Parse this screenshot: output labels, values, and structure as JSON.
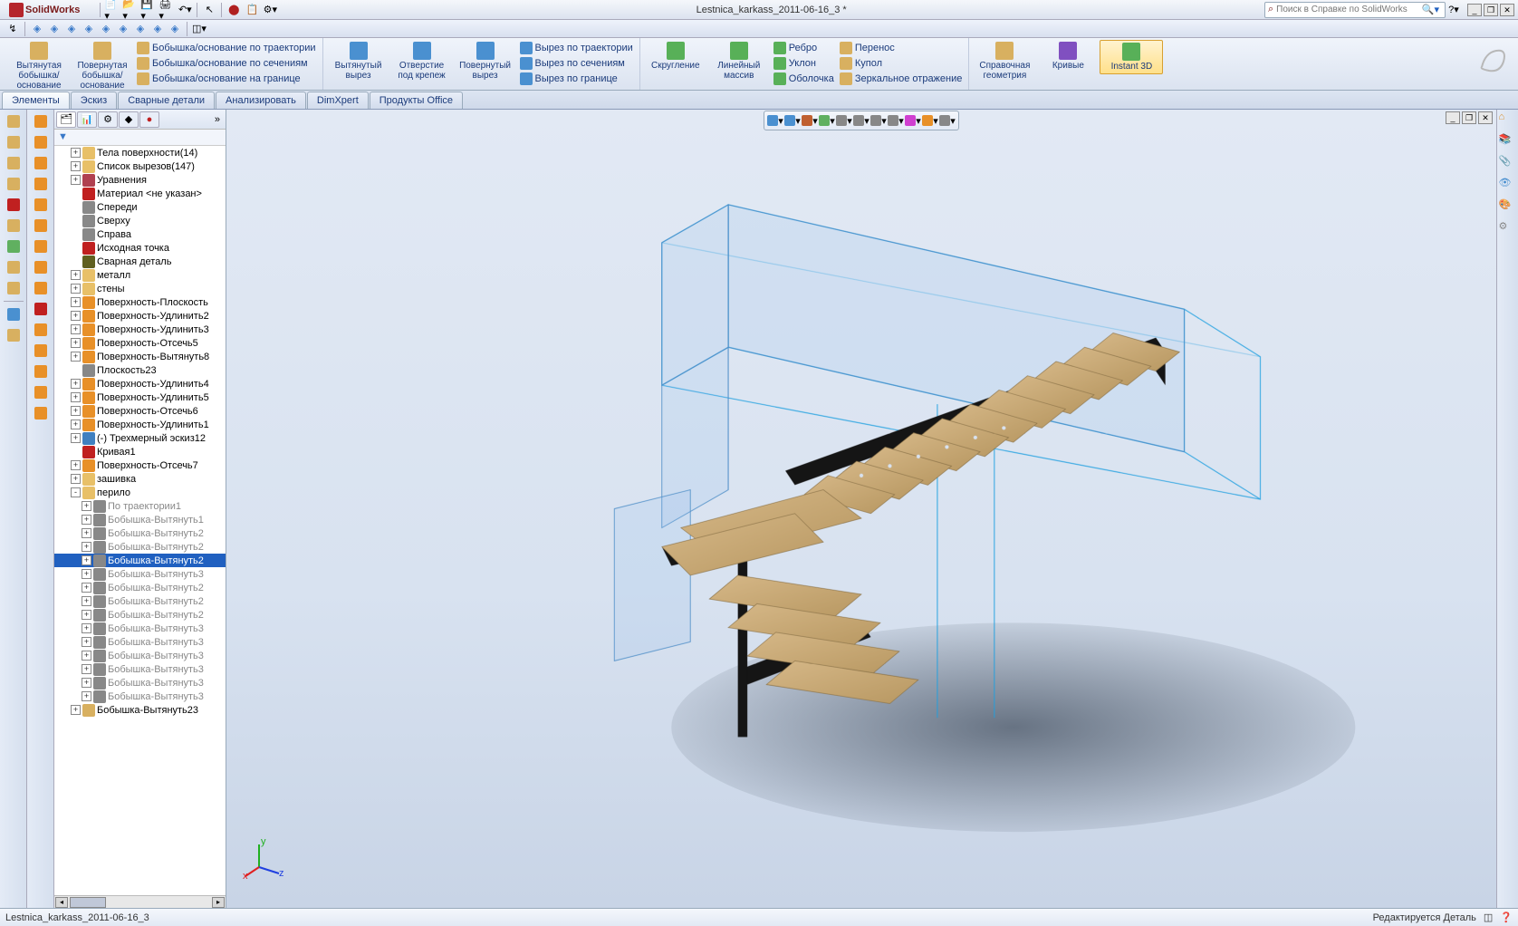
{
  "app": {
    "name": "SolidWorks",
    "document": "Lestnica_karkass_2011-06-16_3 *"
  },
  "search": {
    "placeholder": "Поиск в Справке по SolidWorks"
  },
  "ribbon": {
    "g1": [
      {
        "label": "Вытянутая бобышка/основание",
        "color": "#d8b060"
      },
      {
        "label": "Повернутая бобышка/основание",
        "color": "#d8b060"
      }
    ],
    "g1sm": [
      {
        "label": "Бобышка/основание по траектории",
        "color": "#d8b060"
      },
      {
        "label": "Бобышка/основание по сечениям",
        "color": "#d8b060"
      },
      {
        "label": "Бобышка/основание на границе",
        "color": "#d8b060"
      }
    ],
    "g2": [
      {
        "label": "Вытянутый вырез",
        "color": "#4a90d0"
      },
      {
        "label": "Отверстие под крепеж",
        "color": "#4a90d0"
      },
      {
        "label": "Повернутый вырез",
        "color": "#4a90d0"
      }
    ],
    "g2sm": [
      {
        "label": "Вырез по траектории",
        "color": "#4a90d0"
      },
      {
        "label": "Вырез по сечениям",
        "color": "#4a90d0"
      },
      {
        "label": "Вырез по границе",
        "color": "#4a90d0"
      }
    ],
    "g3": [
      {
        "label": "Скругление",
        "color": "#58b058"
      },
      {
        "label": "Линейный массив",
        "color": "#58b058"
      }
    ],
    "g3sm": [
      {
        "label": "Ребро",
        "color": "#58b058"
      },
      {
        "label": "Уклон",
        "color": "#58b058"
      },
      {
        "label": "Оболочка",
        "color": "#58b058"
      }
    ],
    "g3sm2": [
      {
        "label": "Перенос",
        "color": "#d8b060"
      },
      {
        "label": "Купол",
        "color": "#d8b060"
      },
      {
        "label": "Зеркальное отражение",
        "color": "#d8b060"
      }
    ],
    "g4": [
      {
        "label": "Справочная геометрия",
        "color": "#d8b060"
      },
      {
        "label": "Кривые",
        "color": "#8050c0"
      },
      {
        "label": "Instant 3D",
        "color": "#58b058",
        "active": true
      }
    ]
  },
  "tabs": [
    "Элементы",
    "Эскиз",
    "Сварные детали",
    "Анализировать",
    "DimXpert",
    "Продукты Office"
  ],
  "tree": [
    {
      "lvl": 1,
      "exp": "+",
      "ic": "#e8c068",
      "label": "Тела поверхности(14)"
    },
    {
      "lvl": 1,
      "exp": "+",
      "ic": "#e8c068",
      "label": "Список вырезов(147)"
    },
    {
      "lvl": 1,
      "exp": "+",
      "ic": "#b04050",
      "label": "Уравнения"
    },
    {
      "lvl": 1,
      "exp": " ",
      "ic": "#c02020",
      "label": "Материал <не указан>"
    },
    {
      "lvl": 1,
      "exp": " ",
      "ic": "#888888",
      "label": "Спереди"
    },
    {
      "lvl": 1,
      "exp": " ",
      "ic": "#888888",
      "label": "Сверху"
    },
    {
      "lvl": 1,
      "exp": " ",
      "ic": "#888888",
      "label": "Справа"
    },
    {
      "lvl": 1,
      "exp": " ",
      "ic": "#c02020",
      "label": "Исходная точка"
    },
    {
      "lvl": 1,
      "exp": " ",
      "ic": "#606020",
      "label": "Сварная деталь"
    },
    {
      "lvl": 1,
      "exp": "+",
      "ic": "#e8c068",
      "label": "металл"
    },
    {
      "lvl": 1,
      "exp": "+",
      "ic": "#e8c068",
      "label": "стены"
    },
    {
      "lvl": 1,
      "exp": "+",
      "ic": "#e89028",
      "label": "Поверхность-Плоскость"
    },
    {
      "lvl": 1,
      "exp": "+",
      "ic": "#e89028",
      "label": "Поверхность-Удлинить2"
    },
    {
      "lvl": 1,
      "exp": "+",
      "ic": "#e89028",
      "label": "Поверхность-Удлинить3"
    },
    {
      "lvl": 1,
      "exp": "+",
      "ic": "#e89028",
      "label": "Поверхность-Отсечь5"
    },
    {
      "lvl": 1,
      "exp": "+",
      "ic": "#e89028",
      "label": "Поверхность-Вытянуть8"
    },
    {
      "lvl": 1,
      "exp": " ",
      "ic": "#888888",
      "label": "Плоскость23"
    },
    {
      "lvl": 1,
      "exp": "+",
      "ic": "#e89028",
      "label": "Поверхность-Удлинить4"
    },
    {
      "lvl": 1,
      "exp": "+",
      "ic": "#e89028",
      "label": "Поверхность-Удлинить5"
    },
    {
      "lvl": 1,
      "exp": "+",
      "ic": "#e89028",
      "label": "Поверхность-Отсечь6"
    },
    {
      "lvl": 1,
      "exp": "+",
      "ic": "#e89028",
      "label": "Поверхность-Удлинить1"
    },
    {
      "lvl": 1,
      "exp": "+",
      "ic": "#4080c0",
      "label": "(-) Трехмерный эскиз12"
    },
    {
      "lvl": 1,
      "exp": " ",
      "ic": "#c02020",
      "label": "Кривая1"
    },
    {
      "lvl": 1,
      "exp": "+",
      "ic": "#e89028",
      "label": "Поверхность-Отсечь7"
    },
    {
      "lvl": 1,
      "exp": "+",
      "ic": "#e8c068",
      "label": "зашивка"
    },
    {
      "lvl": 1,
      "exp": "-",
      "ic": "#e8c068",
      "label": "перило"
    },
    {
      "lvl": 2,
      "exp": "+",
      "ic": "#888888",
      "label": "По траектории1",
      "dim": true
    },
    {
      "lvl": 2,
      "exp": "+",
      "ic": "#888888",
      "label": "Бобышка-Вытянуть1",
      "dim": true
    },
    {
      "lvl": 2,
      "exp": "+",
      "ic": "#888888",
      "label": "Бобышка-Вытянуть2",
      "dim": true
    },
    {
      "lvl": 2,
      "exp": "+",
      "ic": "#888888",
      "label": "Бобышка-Вытянуть2",
      "dim": true
    },
    {
      "lvl": 2,
      "exp": "+",
      "ic": "#888888",
      "label": "Бобышка-Вытянуть2",
      "sel": true
    },
    {
      "lvl": 2,
      "exp": "+",
      "ic": "#888888",
      "label": "Бобышка-Вытянуть3",
      "dim": true
    },
    {
      "lvl": 2,
      "exp": "+",
      "ic": "#888888",
      "label": "Бобышка-Вытянуть2",
      "dim": true
    },
    {
      "lvl": 2,
      "exp": "+",
      "ic": "#888888",
      "label": "Бобышка-Вытянуть2",
      "dim": true
    },
    {
      "lvl": 2,
      "exp": "+",
      "ic": "#888888",
      "label": "Бобышка-Вытянуть2",
      "dim": true
    },
    {
      "lvl": 2,
      "exp": "+",
      "ic": "#888888",
      "label": "Бобышка-Вытянуть3",
      "dim": true
    },
    {
      "lvl": 2,
      "exp": "+",
      "ic": "#888888",
      "label": "Бобышка-Вытянуть3",
      "dim": true
    },
    {
      "lvl": 2,
      "exp": "+",
      "ic": "#888888",
      "label": "Бобышка-Вытянуть3",
      "dim": true
    },
    {
      "lvl": 2,
      "exp": "+",
      "ic": "#888888",
      "label": "Бобышка-Вытянуть3",
      "dim": true
    },
    {
      "lvl": 2,
      "exp": "+",
      "ic": "#888888",
      "label": "Бобышка-Вытянуть3",
      "dim": true
    },
    {
      "lvl": 2,
      "exp": "+",
      "ic": "#888888",
      "label": "Бобышка-Вытянуть3",
      "dim": true
    },
    {
      "lvl": 1,
      "exp": "+",
      "ic": "#d8b060",
      "label": "Бобышка-Вытянуть23"
    }
  ],
  "leftToolbar1_colors": [
    "#d8b060",
    "#d8b060",
    "#d8b060",
    "#d8b060",
    "#c02020",
    "#d8b060",
    "#60b060",
    "#d8b060",
    "#d8b060",
    "#4a90d0",
    "#d8b060"
  ],
  "leftToolbar2_colors": [
    "#e89028",
    "#e89028",
    "#e89028",
    "#e89028",
    "#e89028",
    "#e89028",
    "#e89028",
    "#e89028",
    "#e89028",
    "#c02020",
    "#e89028",
    "#e89028",
    "#e89028",
    "#e89028",
    "#e89028"
  ],
  "viewToolbar_colors": [
    "#4a90d0",
    "#4a90d0",
    "#c06030",
    "#60b060",
    "#888888",
    "#888888",
    "#888888",
    "#888888",
    "#d040d0",
    "#e89028",
    "#888888"
  ],
  "status": {
    "left": "Lestnica_karkass_2011-06-16_3",
    "right": "Редактируется Деталь"
  },
  "triad": {
    "x": "x",
    "y": "y",
    "z": "z"
  },
  "model": {
    "description": "3D staircase with steel frame and wooden treads, transparent glass panels around upper floor opening and lower flight. L-shaped with landing.",
    "wood_color": "#c8a872",
    "steel_color": "#151515",
    "glass_color": "#7fb8e8",
    "glass_opacity": 0.18,
    "shadow_color": "#4a5568",
    "wire_color": "#20a0e0"
  }
}
